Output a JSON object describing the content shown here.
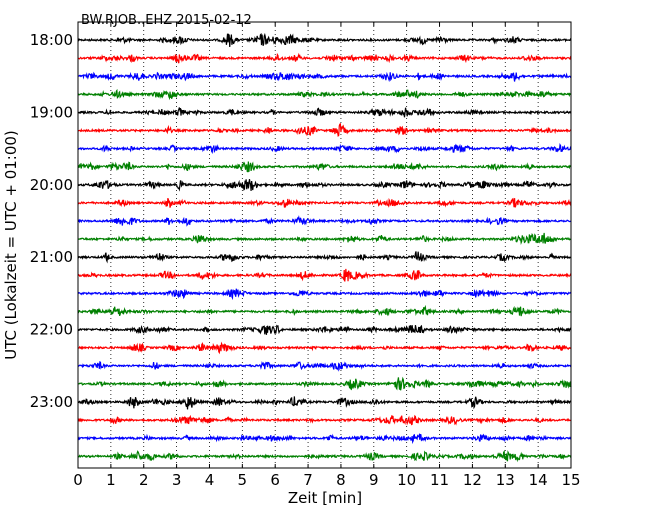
{
  "chart_data": {
    "type": "line",
    "title": "BW.RJOB..EHZ 2015-02-12",
    "xlabel": "Zeit  [min]",
    "ylabel": "UTC (Lokalzeit = UTC + 01:00)",
    "xlim": [
      0,
      15
    ],
    "x_ticks": [
      "0",
      "1",
      "2",
      "3",
      "4",
      "5",
      "6",
      "7",
      "8",
      "9",
      "10",
      "11",
      "12",
      "13",
      "14",
      "15"
    ],
    "y_ticks": [
      "18:00",
      "19:00",
      "20:00",
      "21:00",
      "22:00",
      "23:00"
    ],
    "grid": "vertical dotted",
    "series_colors": [
      "#000000",
      "#ff0000",
      "#0000ff",
      "#008000"
    ],
    "series": [
      {
        "start": "18:00",
        "color": "#000000"
      },
      {
        "start": "18:15",
        "color": "#ff0000"
      },
      {
        "start": "18:30",
        "color": "#0000ff"
      },
      {
        "start": "18:45",
        "color": "#008000"
      },
      {
        "start": "19:00",
        "color": "#000000"
      },
      {
        "start": "19:15",
        "color": "#ff0000"
      },
      {
        "start": "19:30",
        "color": "#0000ff"
      },
      {
        "start": "19:45",
        "color": "#008000"
      },
      {
        "start": "20:00",
        "color": "#000000"
      },
      {
        "start": "20:15",
        "color": "#ff0000"
      },
      {
        "start": "20:30",
        "color": "#0000ff"
      },
      {
        "start": "20:45",
        "color": "#008000"
      },
      {
        "start": "21:00",
        "color": "#000000"
      },
      {
        "start": "21:15",
        "color": "#ff0000"
      },
      {
        "start": "21:30",
        "color": "#0000ff"
      },
      {
        "start": "21:45",
        "color": "#008000"
      },
      {
        "start": "22:00",
        "color": "#000000"
      },
      {
        "start": "22:15",
        "color": "#ff0000"
      },
      {
        "start": "22:30",
        "color": "#0000ff"
      },
      {
        "start": "22:45",
        "color": "#008000"
      },
      {
        "start": "23:00",
        "color": "#000000"
      },
      {
        "start": "23:15",
        "color": "#ff0000"
      },
      {
        "start": "23:30",
        "color": "#0000ff"
      },
      {
        "start": "23:45",
        "color": "#008000"
      }
    ]
  }
}
